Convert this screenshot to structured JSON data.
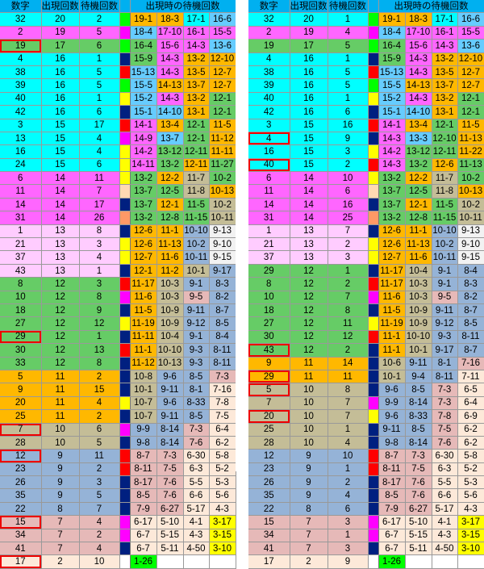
{
  "headers": {
    "num": "数字",
    "count": "出現回数",
    "wait": "待機回数",
    "hist": "出現時の待機回数"
  },
  "colors": {
    "a": "#00ffff",
    "b": "#66ccff",
    "c": "#ff66ff",
    "d": "#ffccff",
    "e": "#66cc66",
    "f": "#ffb800",
    "g": "#c4bd97",
    "h": "#95b3d7",
    "i": "#e6b9b8",
    "j": "#fde9d9",
    "k": "#ff0000",
    "l": "#ffff00",
    "m": "#ff00ff",
    "n": "#00ff00",
    "o": "#002080",
    "p": "#ff9966",
    "q": "#ffd9b3",
    "x": "#ffffff",
    "w": "#f2f2f2",
    "s": "#00b0f0"
  },
  "left": {
    "name": "left-table",
    "rows": [
      [
        "32",
        "20",
        "2",
        "",
        "n",
        "19-1",
        "18-3",
        "17-1",
        "16-6",
        "aaa",
        "ffab"
      ],
      [
        "2",
        "19",
        "5",
        "",
        "m",
        "18-4",
        "17-10",
        "16-1",
        "15-5",
        "cccc",
        "bccc"
      ],
      [
        "19",
        "17",
        "6",
        "n",
        "n",
        "16-4",
        "15-6",
        "14-3",
        "13-6",
        "eee",
        "eccb"
      ],
      [
        "4",
        "16",
        "1",
        "u",
        "o",
        "15-9",
        "14-3",
        "13-2",
        "12-10",
        "aaa",
        "ecff"
      ],
      [
        "38",
        "16",
        "5",
        "",
        "k",
        "15-13",
        "14-3",
        "13-5",
        "12-7",
        "aaa",
        "bcff"
      ],
      [
        "39",
        "16",
        "5",
        "",
        "n",
        "15-5",
        "14-13",
        "13-7",
        "12-7",
        "aaa",
        "bfff"
      ],
      [
        "40",
        "16",
        "1",
        "u",
        "l",
        "15-2",
        "14-3",
        "13-2",
        "12-1",
        "aaa",
        "bcfe"
      ],
      [
        "42",
        "16",
        "6",
        "",
        "o",
        "15-1",
        "14-10",
        "13-1",
        "12-1",
        "aaa",
        "bbfe"
      ],
      [
        "3",
        "15",
        "17",
        "u",
        "k",
        "14-1",
        "13-4",
        "12-1",
        "11-5",
        "aaa",
        "cfef"
      ],
      [
        "13",
        "15",
        "4",
        "",
        "m",
        "14-9",
        "13-7",
        "12-1",
        "11-12",
        "aaa",
        "cbef"
      ],
      [
        "16",
        "15",
        "4",
        "",
        "l",
        "14-2",
        "13-12",
        "12-11",
        "11-11",
        "aaa",
        "ceef"
      ],
      [
        "24",
        "15",
        "6",
        "",
        "l",
        "14-11",
        "13-2",
        "12-11",
        "11-27",
        "aaa",
        "cefe"
      ],
      [
        "6",
        "14",
        "11",
        "",
        "l",
        "13-2",
        "12-2",
        "11-7",
        "10-2",
        "ccc",
        "efge"
      ],
      [
        "11",
        "14",
        "7",
        "",
        "q",
        "13-7",
        "12-5",
        "11-8",
        "10-13",
        "ccc",
        "eegf"
      ],
      [
        "14",
        "14",
        "17",
        "",
        "o",
        "13-7",
        "12-1",
        "11-5",
        "10-2",
        "ccc",
        "efeg"
      ],
      [
        "31",
        "14",
        "26",
        "",
        "p",
        "13-2",
        "12-8",
        "11-15",
        "10-11",
        "ccc",
        "eeeg"
      ],
      [
        "1",
        "13",
        "8",
        "",
        "o",
        "12-6",
        "11-1",
        "10-10",
        "9-13",
        "ddd",
        "ffhw"
      ],
      [
        "21",
        "13",
        "3",
        "",
        "l",
        "12-6",
        "11-13",
        "10-2",
        "9-10",
        "ddd",
        "ffhw"
      ],
      [
        "37",
        "13",
        "4",
        "u",
        "l",
        "12-7",
        "11-6",
        "10-11",
        "9-15",
        "ddd",
        "ffhw"
      ],
      [
        "43",
        "13",
        "1",
        "",
        "o",
        "12-1",
        "11-2",
        "10-1",
        "9-17",
        "ddd",
        "ffgh"
      ],
      [
        "8",
        "12",
        "3",
        "",
        "k",
        "11-17",
        "10-3",
        "9-1",
        "8-3",
        "eee",
        "fghh"
      ],
      [
        "10",
        "12",
        "8",
        "",
        "m",
        "11-6",
        "10-3",
        "9-5",
        "8-2",
        "eee",
        "fgih"
      ],
      [
        "18",
        "12",
        "9",
        "",
        "o",
        "11-5",
        "10-9",
        "9-11",
        "8-7",
        "eee",
        "fghh"
      ],
      [
        "27",
        "12",
        "12",
        "u",
        "l",
        "11-19",
        "10-9",
        "9-12",
        "8-5",
        "eee",
        "fghh"
      ],
      [
        "29",
        "12",
        "1",
        "n",
        "o",
        "11-11",
        "10-4",
        "9-1",
        "8-4",
        "eee",
        "fghh"
      ],
      [
        "30",
        "12",
        "13",
        "",
        "k",
        "11-1",
        "10-10",
        "9-3",
        "8-11",
        "eee",
        "fghh"
      ],
      [
        "33",
        "12",
        "8",
        "u",
        "o",
        "11-12",
        "10-13",
        "9-3",
        "8-11",
        "eee",
        "fghh"
      ],
      [
        "5",
        "11",
        "2",
        "",
        "o",
        "10-8",
        "9-6",
        "8-5",
        "7-3",
        "fff",
        "ghhi"
      ],
      [
        "9",
        "11",
        "15",
        "u",
        "o",
        "10-1",
        "9-11",
        "8-1",
        "7-16",
        "fff",
        "ghhj"
      ],
      [
        "20",
        "11",
        "4",
        "",
        "l",
        "10-7",
        "9-6",
        "8-33",
        "7-8",
        "fff",
        "ghhj"
      ],
      [
        "25",
        "11",
        "2",
        "",
        "o",
        "10-7",
        "9-11",
        "8-5",
        "7-5",
        "fff",
        "ghhj"
      ],
      [
        "7",
        "10",
        "6",
        "n",
        "m",
        "9-9",
        "8-14",
        "7-3",
        "6-4",
        "ggg",
        "hhij"
      ],
      [
        "28",
        "10",
        "5",
        "u",
        "o",
        "9-8",
        "8-14",
        "7-6",
        "6-2",
        "ggg",
        "hhij"
      ],
      [
        "12",
        "9",
        "11",
        "n",
        "k",
        "8-7",
        "7-3",
        "6-30",
        "5-8",
        "hhh",
        "iijj"
      ],
      [
        "23",
        "9",
        "2",
        "",
        "k",
        "8-11",
        "7-5",
        "6-3",
        "5-2",
        "hhh",
        "iijj"
      ],
      [
        "26",
        "9",
        "3",
        "",
        "o",
        "8-17",
        "7-6",
        "5-5",
        "5-3",
        "hhh",
        "iijj"
      ],
      [
        "35",
        "9",
        "5",
        "u",
        "o",
        "8-5",
        "7-6",
        "6-6",
        "5-6",
        "hhh",
        "iijj"
      ],
      [
        "22",
        "8",
        "7",
        "",
        "o",
        "7-9",
        "6-27",
        "5-17",
        "4-3",
        "hhh",
        "iijj"
      ],
      [
        "15",
        "7",
        "4",
        "n",
        "m",
        "6-17",
        "5-10",
        "4-1",
        "3-17",
        "iii",
        "jjjl"
      ],
      [
        "34",
        "7",
        "2",
        "",
        "m",
        "6-7",
        "5-15",
        "4-3",
        "3-15",
        "iii",
        "jjjl"
      ],
      [
        "41",
        "7",
        "4",
        "",
        "o",
        "6-7",
        "5-11",
        "4-50",
        "3-10",
        "iii",
        "jjjl"
      ],
      [
        "17",
        "2",
        "10",
        "n",
        "x",
        "1-26",
        "",
        "",
        "",
        "jjj",
        "nxxx"
      ]
    ]
  },
  "right": {
    "name": "right-table",
    "rows": [
      [
        "32",
        "20",
        "1",
        "",
        "n",
        "19-1",
        "18-3",
        "17-1",
        "16-6",
        "aaa",
        "ffab"
      ],
      [
        "2",
        "19",
        "4",
        "u",
        "m",
        "18-4",
        "17-10",
        "16-1",
        "15-5",
        "cccc",
        "bccc"
      ],
      [
        "19",
        "17",
        "5",
        "",
        "n",
        "16-4",
        "15-6",
        "14-3",
        "13-6",
        "eee",
        "eccb"
      ],
      [
        "4",
        "16",
        "1",
        "",
        "o",
        "15-9",
        "14-3",
        "13-2",
        "12-10",
        "aaa",
        "ecff"
      ],
      [
        "38",
        "16",
        "5",
        "",
        "k",
        "15-13",
        "14-3",
        "13-5",
        "12-7",
        "aaa",
        "bcff"
      ],
      [
        "39",
        "16",
        "5",
        "",
        "n",
        "15-5",
        "14-13",
        "13-7",
        "12-7",
        "aaa",
        "bfff"
      ],
      [
        "40",
        "16",
        "1",
        "",
        "l",
        "15-2",
        "14-3",
        "13-2",
        "12-1",
        "aaa",
        "bcfe"
      ],
      [
        "42",
        "16",
        "6",
        "",
        "o",
        "15-1",
        "14-10",
        "13-1",
        "12-1",
        "aaa",
        "bbfe"
      ],
      [
        "3",
        "15",
        "16",
        "",
        "k",
        "14-1",
        "13-4",
        "12-1",
        "11-5",
        "aaa",
        "cfef"
      ],
      [
        "4",
        "15",
        "9",
        "n",
        "o",
        "14-3",
        "13-3",
        "12-10",
        "11-13",
        "aaa",
        "cbef"
      ],
      [
        "16",
        "15",
        "3",
        "",
        "l",
        "14-2",
        "13-12",
        "12-11",
        "11-22",
        "aaa",
        "ceef"
      ],
      [
        "40",
        "15",
        "2",
        "n",
        "k",
        "14-3",
        "13-2",
        "12-6",
        "11-13",
        "aaa",
        "cefe"
      ],
      [
        "6",
        "14",
        "10",
        "",
        "l",
        "13-2",
        "12-2",
        "11-7",
        "10-2",
        "ccc",
        "efge"
      ],
      [
        "11",
        "14",
        "6",
        "",
        "q",
        "13-7",
        "12-5",
        "11-8",
        "10-13",
        "ccc",
        "eegf"
      ],
      [
        "14",
        "14",
        "16",
        "",
        "o",
        "13-7",
        "12-1",
        "11-5",
        "10-2",
        "ccc",
        "efeg"
      ],
      [
        "31",
        "14",
        "25",
        "",
        "p",
        "13-2",
        "12-8",
        "11-15",
        "10-11",
        "ccc",
        "eeeg"
      ],
      [
        "1",
        "13",
        "7",
        "",
        "o",
        "12-6",
        "11-1",
        "10-10",
        "9-13",
        "ddd",
        "ffhw"
      ],
      [
        "21",
        "13",
        "2",
        "",
        "l",
        "12-6",
        "11-13",
        "10-2",
        "9-10",
        "ddd",
        "ffhw"
      ],
      [
        "37",
        "13",
        "3",
        "",
        "l",
        "12-7",
        "11-6",
        "10-11",
        "9-15",
        "ddd",
        "ffhw"
      ],
      [
        "29",
        "12",
        "1",
        "u",
        "o",
        "11-17",
        "10-4",
        "9-1",
        "8-4",
        "eee",
        "fghh"
      ],
      [
        "8",
        "12",
        "2",
        "",
        "k",
        "11-17",
        "10-3",
        "9-1",
        "8-3",
        "eee",
        "fghh"
      ],
      [
        "10",
        "12",
        "7",
        "",
        "m",
        "11-6",
        "10-3",
        "9-5",
        "8-2",
        "eee",
        "fgih"
      ],
      [
        "18",
        "12",
        "8",
        "",
        "o",
        "11-5",
        "10-9",
        "9-11",
        "8-7",
        "eee",
        "fghh"
      ],
      [
        "27",
        "12",
        "11",
        "",
        "l",
        "11-19",
        "10-9",
        "9-12",
        "8-5",
        "eee",
        "fghh"
      ],
      [
        "30",
        "12",
        "12",
        "",
        "k",
        "11-1",
        "10-10",
        "9-3",
        "8-11",
        "eee",
        "fghh"
      ],
      [
        "43",
        "12",
        "2",
        "n",
        "o",
        "11-1",
        "10-1",
        "9-17",
        "8-7",
        "eee",
        "fghh"
      ],
      [
        "9",
        "11",
        "14",
        "",
        "o",
        "10-6",
        "9-11",
        "8-1",
        "7-16",
        "fff",
        "ghhi"
      ],
      [
        "29",
        "11",
        "11",
        "n",
        "o",
        "10-1",
        "9-4",
        "8-11",
        "7-11",
        "fff",
        "ghhj"
      ],
      [
        "5",
        "10",
        "8",
        "n",
        "o",
        "9-6",
        "8-5",
        "7-3",
        "6-5",
        "ggg",
        "hhij"
      ],
      [
        "7",
        "10",
        "7",
        "",
        "m",
        "9-9",
        "8-14",
        "7-3",
        "6-4",
        "ggg",
        "hhij"
      ],
      [
        "20",
        "10",
        "7",
        "n",
        "l",
        "9-6",
        "8-33",
        "7-8",
        "6-9",
        "ggg",
        "hhij"
      ],
      [
        "25",
        "10",
        "1",
        "",
        "o",
        "9-11",
        "8-5",
        "7-5",
        "6-2",
        "ggg",
        "hhij"
      ],
      [
        "28",
        "10",
        "4",
        "",
        "o",
        "9-8",
        "8-14",
        "7-6",
        "6-2",
        "ggg",
        "hhij"
      ],
      [
        "12",
        "9",
        "10",
        "",
        "k",
        "8-7",
        "7-3",
        "6-30",
        "5-8",
        "hhh",
        "iijj"
      ],
      [
        "23",
        "9",
        "1",
        "",
        "k",
        "8-11",
        "7-5",
        "6-3",
        "5-2",
        "hhh",
        "iijj"
      ],
      [
        "26",
        "9",
        "2",
        "",
        "o",
        "8-17",
        "7-6",
        "5-5",
        "5-3",
        "hhh",
        "iijj"
      ],
      [
        "35",
        "9",
        "4",
        "",
        "o",
        "8-5",
        "7-6",
        "6-6",
        "5-6",
        "hhh",
        "iijj"
      ],
      [
        "22",
        "8",
        "6",
        "",
        "o",
        "7-9",
        "6-27",
        "5-17",
        "4-3",
        "hhh",
        "iijj"
      ],
      [
        "15",
        "7",
        "3",
        "",
        "m",
        "6-17",
        "5-10",
        "4-1",
        "3-17",
        "iii",
        "jjjl"
      ],
      [
        "34",
        "7",
        "1",
        "",
        "m",
        "6-7",
        "5-15",
        "4-3",
        "3-15",
        "iii",
        "jjjl"
      ],
      [
        "41",
        "7",
        "3",
        "",
        "o",
        "6-7",
        "5-11",
        "4-50",
        "3-10",
        "iii",
        "jjjl"
      ],
      [
        "17",
        "2",
        "9",
        "u",
        "x",
        "1-26",
        "",
        "",
        "",
        "jjj",
        "nxxx"
      ]
    ]
  }
}
